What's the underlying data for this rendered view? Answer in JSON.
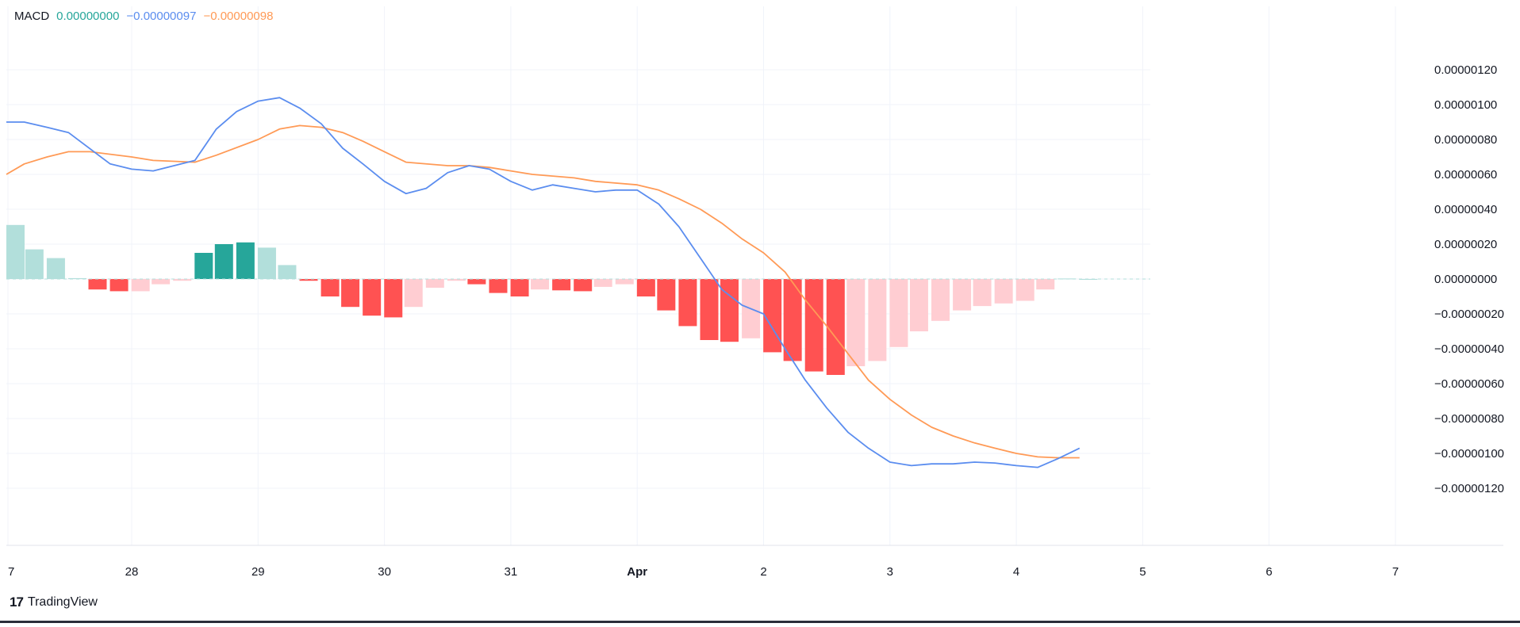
{
  "legend": {
    "name": "MACD",
    "hist_value": "0.00000000",
    "macd_value": "−0.00000097",
    "signal_value": "−0.00000098"
  },
  "colors": {
    "macd": "#5b8def",
    "signal": "#ff9a56",
    "hist_pos_strong": "#26a69a",
    "hist_pos_weak": "#b2dfdb",
    "hist_neg_strong": "#ff5252",
    "hist_neg_weak": "#ffcdd2",
    "grid": "#f0f3fa",
    "axis_text": "#131722"
  },
  "footer": {
    "logo_mark": "17",
    "brand": "TradingView"
  },
  "chart_data": {
    "type": "line",
    "title": "MACD",
    "x_axis": {
      "ticks": [
        "7",
        "28",
        "29",
        "30",
        "31",
        "Apr",
        "2",
        "3",
        "4",
        "5",
        "6",
        "7"
      ],
      "tick_bold": [
        false,
        false,
        false,
        false,
        false,
        true,
        false,
        false,
        false,
        false,
        false,
        false
      ]
    },
    "y_axis": {
      "position": "right",
      "range": [
        -1.3e-06,
        1.3e-06
      ],
      "ticks": [
        "0.00000120",
        "0.00000100",
        "0.00000080",
        "0.00000060",
        "0.00000040",
        "0.00000020",
        "0.00000000",
        "−0.00000020",
        "−0.00000040",
        "−0.00000060",
        "−0.00000080",
        "−0.00000100",
        "−0.00000120"
      ],
      "tick_values": [
        1.2e-06,
        1e-06,
        8e-07,
        6e-07,
        4e-07,
        2e-07,
        0,
        -2e-07,
        -4e-07,
        -6e-07,
        -8e-07,
        -1e-06,
        -1.2e-06
      ]
    },
    "grid": true,
    "zero_line": "dashed",
    "series": [
      {
        "name": "MACD",
        "kind": "line",
        "x": [
          -0.1,
          0.15,
          0.33,
          0.5,
          0.83,
          1.0,
          1.17,
          1.5,
          1.67,
          1.83,
          2.0,
          2.17,
          2.33,
          2.5,
          2.67,
          2.83,
          3.0,
          3.17,
          3.33,
          3.5,
          3.67,
          3.83,
          4.0,
          4.17,
          4.33,
          4.5,
          4.67,
          4.83,
          5.0,
          5.17,
          5.33,
          5.5,
          5.67,
          5.83,
          6.0,
          6.17,
          6.33,
          6.5,
          6.67,
          6.83,
          7.0,
          7.17,
          7.33,
          7.5,
          7.67,
          7.83,
          8.0,
          8.17,
          8.33,
          8.5
        ],
        "values": [
          9e-07,
          9e-07,
          8.7e-07,
          8.4e-07,
          6.6e-07,
          6.3e-07,
          6.2e-07,
          6.8e-07,
          8.6e-07,
          9.6e-07,
          1.02e-06,
          1.04e-06,
          9.8e-07,
          8.9e-07,
          7.5e-07,
          6.6e-07,
          5.6e-07,
          4.9e-07,
          5.2e-07,
          6.1e-07,
          6.5e-07,
          6.3e-07,
          5.6e-07,
          5.1e-07,
          5.4e-07,
          5.2e-07,
          5e-07,
          5.1e-07,
          5.1e-07,
          4.3e-07,
          3e-07,
          1.2e-07,
          -6e-08,
          -1.5e-07,
          -2e-07,
          -4e-07,
          -5.8e-07,
          -7.4e-07,
          -8.8e-07,
          -9.7e-07,
          -1.05e-06,
          -1.07e-06,
          -1.06e-06,
          -1.06e-06,
          -1.05e-06,
          -1.055e-06,
          -1.07e-06,
          -1.08e-06,
          -1.03e-06,
          -9.7e-07
        ]
      },
      {
        "name": "Signal",
        "kind": "line",
        "x": [
          -0.1,
          0.15,
          0.33,
          0.5,
          0.67,
          1.0,
          1.17,
          1.5,
          1.67,
          2.0,
          2.17,
          2.33,
          2.5,
          2.67,
          2.83,
          3.0,
          3.17,
          3.5,
          3.67,
          3.83,
          4.0,
          4.17,
          4.5,
          4.67,
          5.0,
          5.17,
          5.33,
          5.5,
          5.67,
          5.83,
          6.0,
          6.17,
          6.33,
          6.5,
          6.67,
          6.83,
          7.0,
          7.17,
          7.33,
          7.5,
          7.67,
          7.83,
          8.0,
          8.17,
          8.33,
          8.5
        ],
        "values": [
          6e-07,
          6.6e-07,
          7e-07,
          7.3e-07,
          7.3e-07,
          7e-07,
          6.8e-07,
          6.7e-07,
          7.1e-07,
          8e-07,
          8.6e-07,
          8.8e-07,
          8.7e-07,
          8.4e-07,
          7.9e-07,
          7.3e-07,
          6.7e-07,
          6.5e-07,
          6.5e-07,
          6.4e-07,
          6.2e-07,
          6e-07,
          5.8e-07,
          5.6e-07,
          5.4e-07,
          5.1e-07,
          4.6e-07,
          4e-07,
          3.2e-07,
          2.3e-07,
          1.5e-07,
          4e-08,
          -1.2e-07,
          -2.7e-07,
          -4.3e-07,
          -5.8e-07,
          -6.9e-07,
          -7.8e-07,
          -8.5e-07,
          -9e-07,
          -9.4e-07,
          -9.7e-07,
          -1e-06,
          -1.02e-06,
          -1.025e-06,
          -1.025e-06
        ]
      },
      {
        "name": "Histogram",
        "kind": "bar",
        "x": [
          -0.1,
          0.07,
          0.23,
          0.4,
          0.57,
          0.73,
          0.9,
          1.07,
          1.23,
          1.4,
          1.57,
          1.73,
          1.9,
          2.07,
          2.23,
          2.4,
          2.57,
          2.73,
          2.9,
          3.07,
          3.23,
          3.4,
          3.57,
          3.73,
          3.9,
          4.07,
          4.23,
          4.4,
          4.57,
          4.73,
          4.9,
          5.07,
          5.23,
          5.4,
          5.57,
          5.73,
          5.9,
          6.07,
          6.23,
          6.4,
          6.57,
          6.73,
          6.9,
          7.07,
          7.23,
          7.4,
          7.57,
          7.73,
          7.9,
          8.07,
          8.23,
          8.4,
          8.57
        ],
        "values": [
          3.1e-07,
          2.5e-07,
          1.7e-07,
          1.2e-07,
          5e-09,
          -6e-08,
          -7e-08,
          -7e-08,
          -3e-08,
          -1e-08,
          1.5e-07,
          2e-07,
          2.1e-07,
          1.8e-07,
          8e-08,
          -1e-08,
          -1e-07,
          -1.6e-07,
          -2.1e-07,
          -2.2e-07,
          -1.6e-07,
          -5e-08,
          -1e-08,
          -3e-08,
          -8e-08,
          -1e-07,
          -6e-08,
          -6.5e-08,
          -7e-08,
          -4.5e-08,
          -3e-08,
          -1e-07,
          -1.8e-07,
          -2.7e-07,
          -3.5e-07,
          -3.6e-07,
          -3.4e-07,
          -4.2e-07,
          -4.7e-07,
          -5.3e-07,
          -5.5e-07,
          -5e-07,
          -4.7e-07,
          -3.9e-07,
          -3e-07,
          -2.4e-07,
          -1.8e-07,
          -1.55e-07,
          -1.4e-07,
          -1.25e-07,
          -6e-08,
          3e-09,
          0.0
        ],
        "shade": [
          "weak",
          "weak",
          "weak",
          "weak",
          "weak",
          "strong",
          "strong",
          "weak",
          "weak",
          "weak",
          "strong",
          "strong",
          "strong",
          "weak",
          "weak",
          "strong",
          "strong",
          "strong",
          "strong",
          "strong",
          "weak",
          "weak",
          "weak",
          "strong",
          "strong",
          "strong",
          "weak",
          "strong",
          "strong",
          "weak",
          "weak",
          "strong",
          "strong",
          "strong",
          "strong",
          "strong",
          "weak",
          "strong",
          "strong",
          "strong",
          "strong",
          "weak",
          "weak",
          "weak",
          "weak",
          "weak",
          "weak",
          "weak",
          "weak",
          "weak",
          "weak",
          "weak",
          "weak"
        ]
      }
    ]
  }
}
